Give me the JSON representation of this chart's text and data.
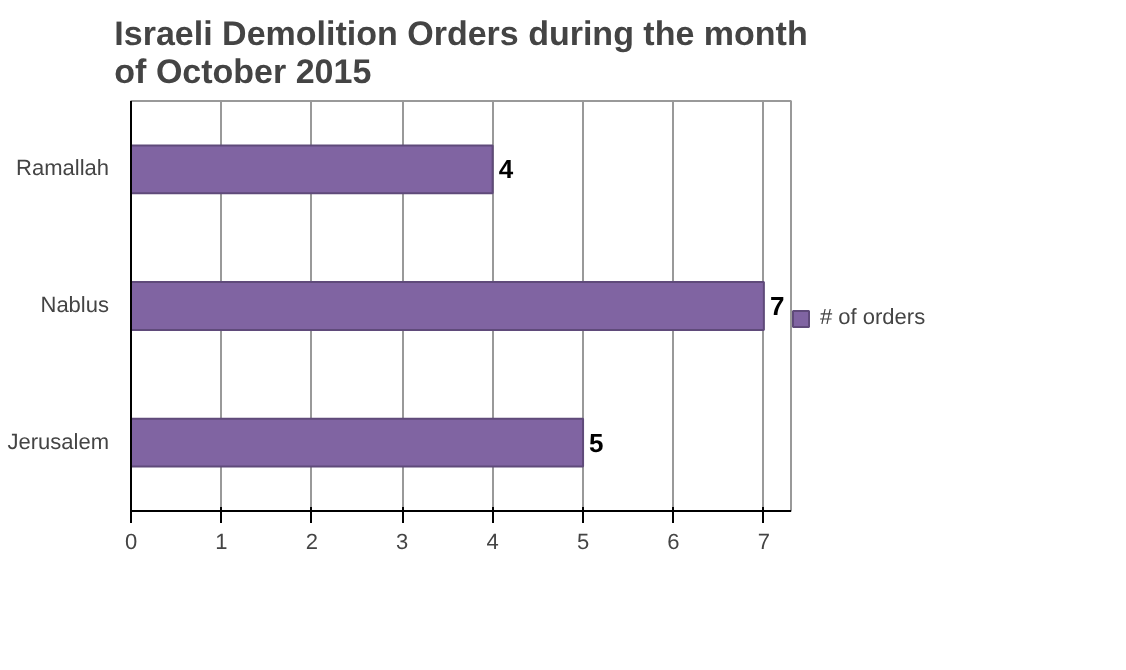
{
  "chart_data": {
    "type": "bar",
    "orientation": "horizontal",
    "title": "Israeli Demolition Orders during the month\nof October 2015",
    "categories": [
      "Ramallah",
      "Nablus",
      "Jerusalem"
    ],
    "series": [
      {
        "name": "# of orders",
        "color": "#8064a2",
        "values": [
          4,
          7,
          5
        ]
      }
    ],
    "xlim": [
      0,
      7.3
    ],
    "xticks": [
      0,
      1,
      2,
      3,
      4,
      5,
      6,
      7
    ],
    "grid": "x",
    "legend": "right",
    "data_labels": true
  }
}
